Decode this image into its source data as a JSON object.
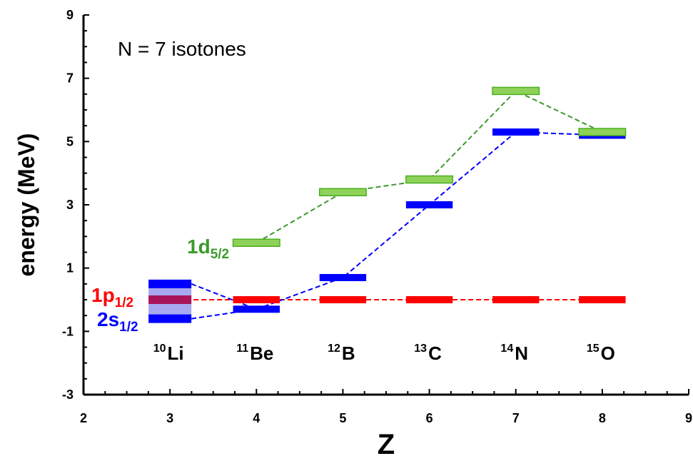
{
  "chart_data": {
    "type": "scatter",
    "annotation": "N = 7 isotones",
    "xlabel": "Z",
    "ylabel": "energy (MeV)",
    "xlim": [
      2,
      9
    ],
    "ylim": [
      -3,
      9
    ],
    "xticks": [
      2,
      3,
      4,
      5,
      6,
      7,
      8,
      9
    ],
    "yticks": [
      -3,
      -1,
      1,
      3,
      5,
      7,
      9
    ],
    "grid": false,
    "isotopes": [
      {
        "mass": "10",
        "symbol": "Li",
        "z": 3
      },
      {
        "mass": "11",
        "symbol": "Be",
        "z": 4
      },
      {
        "mass": "12",
        "symbol": "B",
        "z": 5
      },
      {
        "mass": "13",
        "symbol": "C",
        "z": 6
      },
      {
        "mass": "14",
        "symbol": "N",
        "z": 7
      },
      {
        "mass": "15",
        "symbol": "O",
        "z": 8
      }
    ],
    "series": [
      {
        "orbital": "1p",
        "subscript": "1/2",
        "color": "#ff0000",
        "x": [
          3,
          4,
          5,
          6,
          7,
          8
        ],
        "y": [
          0,
          0,
          0,
          0,
          0,
          0
        ]
      },
      {
        "orbital": "2s",
        "subscript": "1/2",
        "color": "#0000ff",
        "x": [
          3,
          3,
          4,
          5,
          6,
          7,
          8
        ],
        "y": [
          0.5,
          -0.6,
          -0.3,
          0.7,
          3.0,
          5.3,
          5.2
        ],
        "band_10Li": [
          -0.6,
          0.5
        ]
      },
      {
        "orbital": "1d",
        "subscript": "5/2",
        "color": "#4caf20",
        "x": [
          4,
          5,
          6,
          7,
          8
        ],
        "y": [
          1.8,
          3.4,
          3.8,
          6.6,
          5.3
        ]
      }
    ]
  }
}
